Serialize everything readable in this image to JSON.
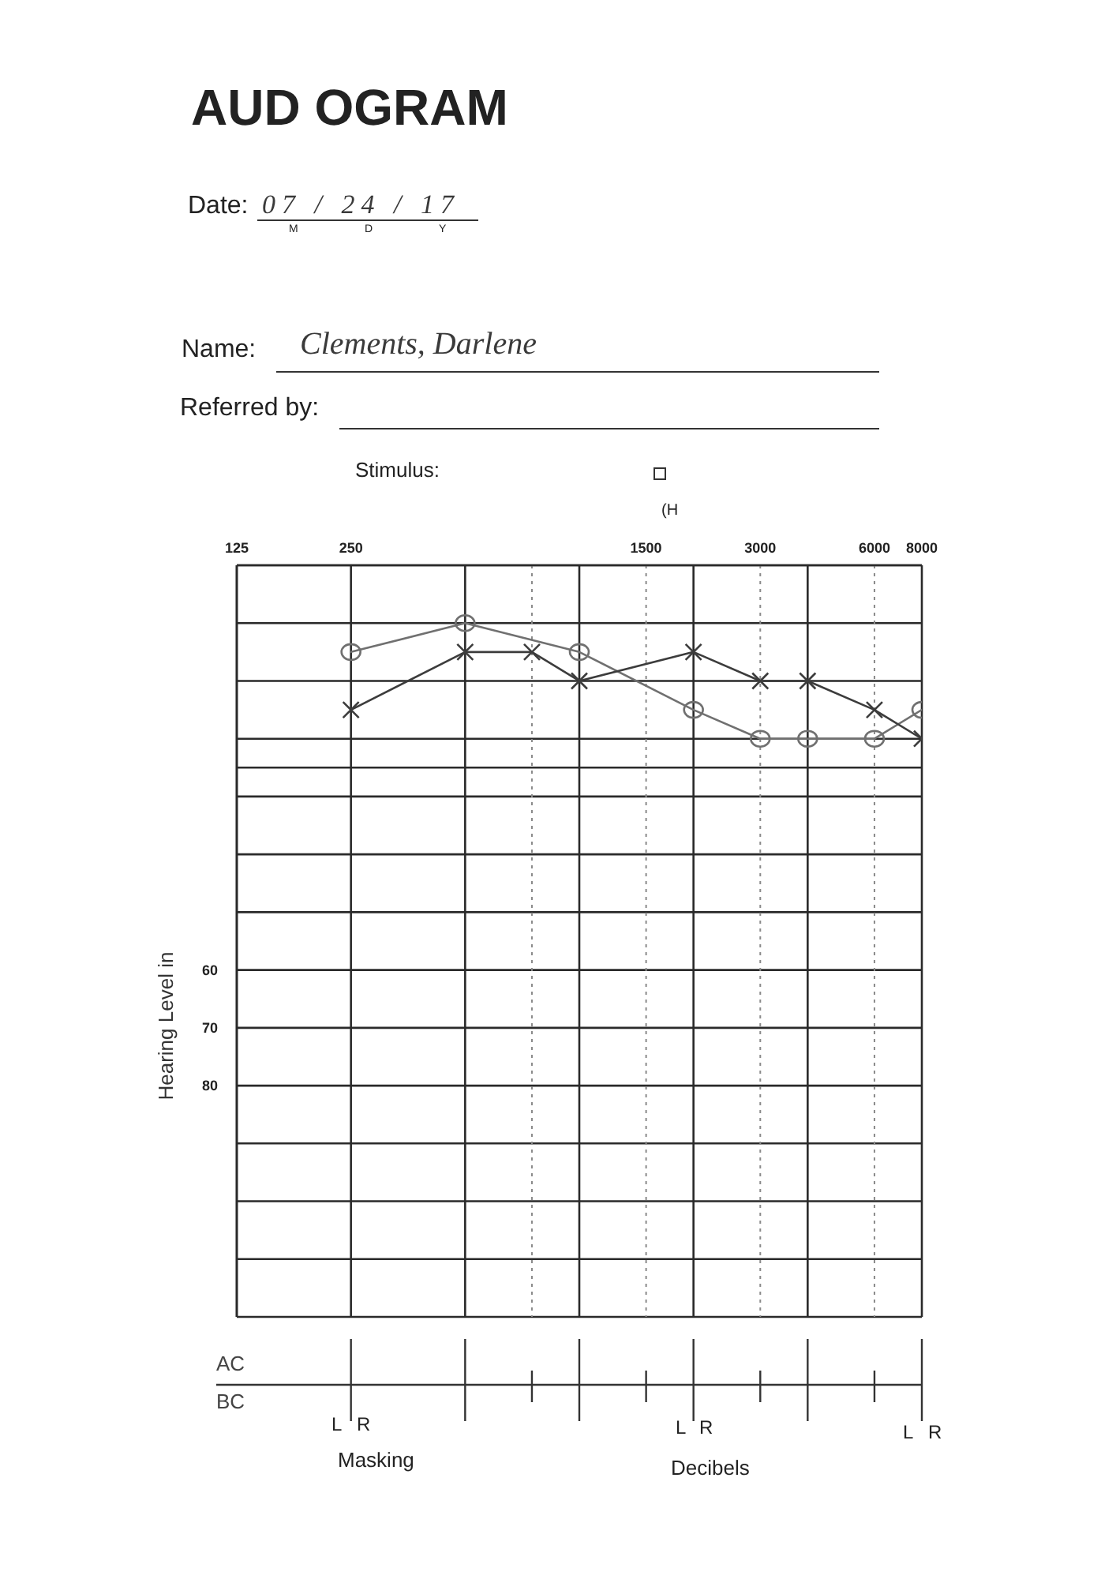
{
  "chart_data": {
    "type": "line",
    "title": "AUD OGRAM",
    "ylabel": "Hearing Level in",
    "annotations": [
      "Date:",
      "07 / 24 / 17",
      "M",
      "D",
      "Y",
      "Name:",
      "Clements, Darlene",
      "Referred by:",
      "Stimulus:",
      "(H",
      "AC",
      "BC",
      "L",
      "R",
      "L",
      "R",
      "L",
      "R",
      "Masking",
      "Decibels"
    ],
    "series": [
      {
        "x": [
          250,
          500,
          1000,
          2000,
          3000,
          4000,
          6000,
          8000
        ],
        "values": [
          5,
          0,
          5,
          15,
          20,
          20,
          20,
          15
        ],
        "color": "#707070",
        "marker": "circle"
      },
      {
        "x": [
          250,
          500,
          750,
          1000,
          2000,
          3000,
          4000,
          6000,
          8000
        ],
        "values": [
          15,
          5,
          5,
          10,
          5,
          10,
          10,
          15,
          20
        ],
        "color": "#3c3c3c",
        "marker": "cross"
      }
    ],
    "log": "x",
    "xlim": [
      125,
      8000
    ],
    "xticks": [
      125,
      250,
      {
        "value": 500,
        "label": null
      },
      {
        "value": 750,
        "label": null
      },
      {
        "value": 1000,
        "label": null
      },
      1500,
      {
        "value": 2000,
        "label": null
      },
      3000,
      {
        "value": 4000,
        "label": null
      },
      6000,
      8000
    ],
    "ylim": [
      120,
      -10
    ],
    "yticks": [
      {
        "value": -10,
        "label": null
      },
      {
        "value": 0,
        "label": null
      },
      {
        "value": 10,
        "label": null
      },
      {
        "value": 20,
        "label": null
      },
      {
        "value": 30,
        "label": null
      },
      {
        "value": 40,
        "label": null
      },
      {
        "value": 50,
        "label": null
      },
      60,
      70,
      80,
      {
        "value": 90,
        "label": null
      },
      {
        "value": 100,
        "label": null
      },
      {
        "value": 110,
        "label": null
      },
      {
        "value": 120,
        "label": null
      }
    ],
    "ref_lines": [
      {
        "axis": "y",
        "value": 25,
        "color": "#2a2a2a"
      }
    ],
    "grid": true,
    "line_style": "solid"
  }
}
